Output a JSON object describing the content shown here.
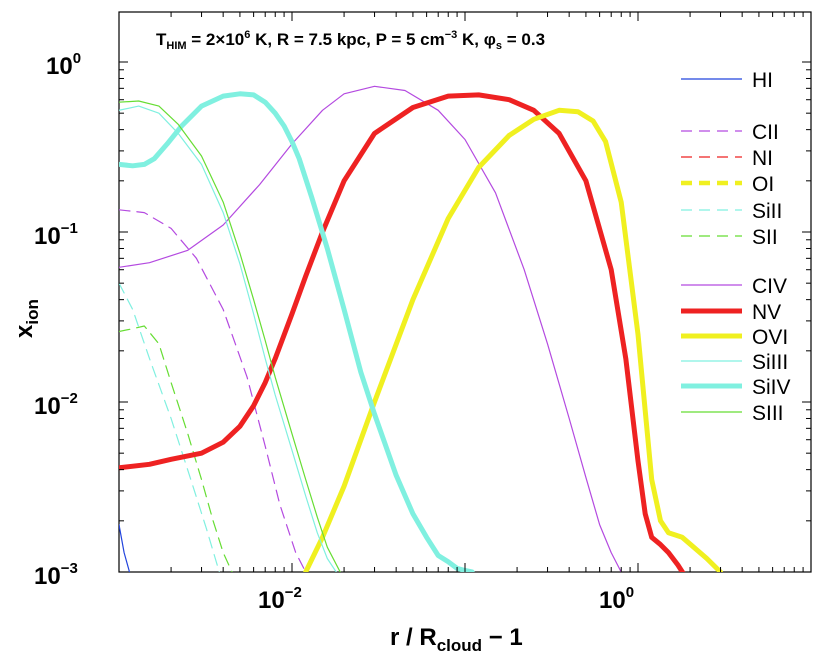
{
  "chart_data": {
    "type": "line",
    "title": {
      "t": "T",
      "t_sub": "HIM",
      "eq1": " = 2",
      "times": "×",
      "ten": "10",
      "ten_exp": "6",
      "unit_k1": " K,  R = 7.5 kpc,  P = 5 cm",
      "p_exp": "−3",
      "unit_k2": " K,  ",
      "phi": "φ",
      "phi_sub": "s",
      "eq2": " = 0.3"
    },
    "xlabel": {
      "main": "r / R",
      "sub": "cloud",
      "tail": " − 1"
    },
    "ylabel": {
      "main": "x",
      "sub": "ion"
    },
    "xscale": "log",
    "yscale": "log",
    "xlim": [
      0.001,
      10
    ],
    "ylim": [
      0.001,
      2
    ],
    "x_ticks": [
      {
        "value": 0.01,
        "base": "10",
        "exp": "−2"
      },
      {
        "value": 1,
        "base": "10",
        "exp": "0"
      }
    ],
    "y_ticks": [
      {
        "value": 0.001,
        "base": "10",
        "exp": "−3"
      },
      {
        "value": 0.01,
        "base": "10",
        "exp": "−2"
      },
      {
        "value": 0.1,
        "base": "10",
        "exp": "−1"
      },
      {
        "value": 1,
        "base": "10",
        "exp": "0"
      }
    ],
    "legend_position": "right",
    "series": [
      {
        "name": "HI",
        "color": "#2244dd",
        "width": 1.2,
        "dash": "solid",
        "x": [
          0.001,
          0.00107,
          0.00115
        ],
        "y": [
          0.0019,
          0.0013,
          0.001
        ]
      },
      {
        "name": "CII",
        "color": "#b44ae0",
        "width": 1.2,
        "dash": "dashed",
        "x": [
          0.001,
          0.0014,
          0.002,
          0.0028,
          0.004,
          0.0055,
          0.007,
          0.0085,
          0.0105,
          0.012
        ],
        "y": [
          0.135,
          0.13,
          0.105,
          0.07,
          0.035,
          0.014,
          0.0055,
          0.0025,
          0.0013,
          0.001
        ]
      },
      {
        "name": "NI",
        "color": "#ee2222",
        "width": 1.2,
        "dash": "dashed",
        "x": [],
        "y": []
      },
      {
        "name": "OI",
        "color": "#f0f020",
        "width": 4.5,
        "dash": "dashed",
        "x": [],
        "y": []
      },
      {
        "name": "SiII",
        "color": "#80f0e0",
        "width": 1.2,
        "dash": "dashed",
        "x": [
          0.001,
          0.0012,
          0.0015,
          0.002,
          0.0026,
          0.0032,
          0.0038
        ],
        "y": [
          0.05,
          0.035,
          0.018,
          0.008,
          0.0035,
          0.0018,
          0.001
        ]
      },
      {
        "name": "SII",
        "color": "#66dd33",
        "width": 1.2,
        "dash": "dashed",
        "x": [
          0.001,
          0.0012,
          0.0014,
          0.0017,
          0.002,
          0.0025,
          0.003,
          0.0035,
          0.004,
          0.0045
        ],
        "y": [
          0.026,
          0.027,
          0.028,
          0.022,
          0.013,
          0.0065,
          0.0035,
          0.002,
          0.0013,
          0.001
        ]
      },
      {
        "name": "CIV",
        "color": "#b44ae0",
        "width": 1.2,
        "dash": "solid",
        "x": [
          0.001,
          0.0015,
          0.0025,
          0.004,
          0.0065,
          0.01,
          0.015,
          0.02,
          0.03,
          0.045,
          0.07,
          0.1,
          0.15,
          0.22,
          0.3,
          0.4,
          0.5,
          0.6,
          0.7,
          0.8
        ],
        "y": [
          0.062,
          0.066,
          0.078,
          0.11,
          0.19,
          0.33,
          0.52,
          0.65,
          0.72,
          0.68,
          0.52,
          0.35,
          0.17,
          0.06,
          0.022,
          0.008,
          0.0036,
          0.0019,
          0.0013,
          0.001
        ]
      },
      {
        "name": "NV",
        "color": "#ee2222",
        "width": 5,
        "dash": "solid",
        "x": [
          0.001,
          0.0015,
          0.002,
          0.003,
          0.004,
          0.005,
          0.006,
          0.007,
          0.008,
          0.01,
          0.012,
          0.015,
          0.02,
          0.03,
          0.05,
          0.08,
          0.12,
          0.18,
          0.25,
          0.35,
          0.5,
          0.7,
          0.85,
          1.0,
          1.1,
          1.2,
          1.35,
          1.5,
          1.7,
          2.0
        ],
        "y": [
          0.0041,
          0.0043,
          0.0046,
          0.005,
          0.0058,
          0.0072,
          0.0095,
          0.013,
          0.018,
          0.033,
          0.055,
          0.1,
          0.2,
          0.38,
          0.54,
          0.63,
          0.64,
          0.6,
          0.52,
          0.38,
          0.2,
          0.06,
          0.018,
          0.0045,
          0.0022,
          0.0016,
          0.00145,
          0.0013,
          0.0011,
          0.00085
        ]
      },
      {
        "name": "OVI",
        "color": "#f0f020",
        "width": 5,
        "dash": "solid",
        "x": [
          0.012,
          0.015,
          0.02,
          0.03,
          0.05,
          0.08,
          0.12,
          0.18,
          0.25,
          0.35,
          0.45,
          0.55,
          0.65,
          0.8,
          1.0,
          1.2,
          1.35,
          1.5,
          1.8,
          2.1,
          2.5,
          3.0
        ],
        "y": [
          0.001,
          0.0016,
          0.0032,
          0.01,
          0.04,
          0.12,
          0.24,
          0.37,
          0.46,
          0.52,
          0.51,
          0.45,
          0.34,
          0.15,
          0.025,
          0.0035,
          0.002,
          0.0017,
          0.0016,
          0.0014,
          0.0012,
          0.001
        ]
      },
      {
        "name": "SiIII",
        "color": "#80f0e0",
        "width": 1.2,
        "dash": "solid",
        "x": [
          0.001,
          0.0013,
          0.0017,
          0.0022,
          0.003,
          0.004,
          0.005,
          0.006,
          0.007,
          0.008,
          0.01,
          0.012,
          0.014,
          0.016,
          0.018
        ],
        "y": [
          0.52,
          0.55,
          0.5,
          0.38,
          0.25,
          0.13,
          0.065,
          0.033,
          0.018,
          0.011,
          0.0052,
          0.0028,
          0.0017,
          0.0012,
          0.001
        ]
      },
      {
        "name": "SiIV",
        "color": "#80f0e0",
        "width": 5,
        "dash": "solid",
        "x": [
          0.001,
          0.0012,
          0.0014,
          0.0016,
          0.0019,
          0.0023,
          0.003,
          0.004,
          0.005,
          0.006,
          0.007,
          0.008,
          0.009,
          0.01,
          0.011,
          0.013,
          0.016,
          0.02,
          0.025,
          0.03,
          0.04,
          0.05,
          0.06,
          0.07,
          0.08,
          0.09,
          0.1,
          0.11
        ],
        "y": [
          0.25,
          0.245,
          0.25,
          0.27,
          0.33,
          0.42,
          0.55,
          0.63,
          0.65,
          0.64,
          0.58,
          0.5,
          0.42,
          0.34,
          0.27,
          0.16,
          0.08,
          0.035,
          0.015,
          0.0085,
          0.0037,
          0.0022,
          0.0016,
          0.00125,
          0.00115,
          0.00105,
          0.00102,
          0.001
        ]
      },
      {
        "name": "SIII",
        "color": "#66dd33",
        "width": 1.2,
        "dash": "solid",
        "x": [
          0.001,
          0.0013,
          0.0017,
          0.0022,
          0.003,
          0.004,
          0.005,
          0.006,
          0.007,
          0.008,
          0.01,
          0.012,
          0.014,
          0.016,
          0.019
        ],
        "y": [
          0.58,
          0.59,
          0.55,
          0.43,
          0.28,
          0.15,
          0.075,
          0.04,
          0.023,
          0.014,
          0.0065,
          0.0035,
          0.0021,
          0.0014,
          0.001
        ]
      }
    ],
    "legend_entries": [
      {
        "label": "HI",
        "color": "#2244dd",
        "width": 1.2,
        "dash": "solid"
      },
      {
        "label": "CII",
        "color": "#b44ae0",
        "width": 1.2,
        "dash": "dashed"
      },
      {
        "label": "NI",
        "color": "#ee2222",
        "width": 1.2,
        "dash": "dashed"
      },
      {
        "label": "OI",
        "color": "#f0f020",
        "width": 4.5,
        "dash": "dashed"
      },
      {
        "label": "SiII",
        "color": "#80f0e0",
        "width": 1.2,
        "dash": "dashed"
      },
      {
        "label": "SII",
        "color": "#66dd33",
        "width": 1.2,
        "dash": "dashed"
      },
      {
        "label": "CIV",
        "color": "#b44ae0",
        "width": 1.2,
        "dash": "solid"
      },
      {
        "label": "NV",
        "color": "#ee2222",
        "width": 5,
        "dash": "solid"
      },
      {
        "label": "OVI",
        "color": "#f0f020",
        "width": 5,
        "dash": "solid"
      },
      {
        "label": "SiIII",
        "color": "#80f0e0",
        "width": 1.2,
        "dash": "solid"
      },
      {
        "label": "SiIV",
        "color": "#80f0e0",
        "width": 5,
        "dash": "solid"
      },
      {
        "label": "SIII",
        "color": "#66dd33",
        "width": 1.2,
        "dash": "solid"
      }
    ]
  }
}
